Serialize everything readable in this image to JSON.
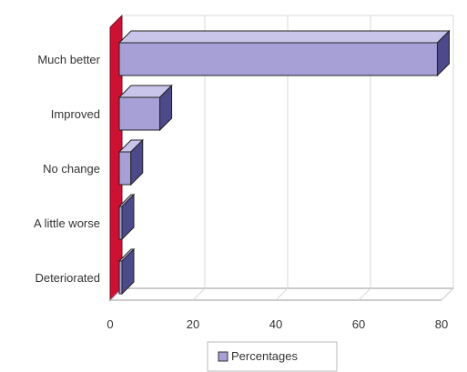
{
  "chart_data": {
    "type": "bar",
    "orientation": "horizontal",
    "style": "3d",
    "categories": [
      "Much better",
      "Improved",
      "No change",
      "A little worse",
      "Deteriorated"
    ],
    "series": [
      {
        "name": "Percentages",
        "values": [
          79,
          12,
          5,
          1.5,
          1.5
        ]
      }
    ],
    "xlim": [
      0,
      80
    ],
    "xticks": [
      0,
      20,
      40,
      60,
      80
    ],
    "title": "",
    "xlabel": "",
    "ylabel": "",
    "grid": true,
    "legend_position": "bottom",
    "colors": {
      "bar_front": "#a6a0d6",
      "bar_top": "#c9c5ea",
      "bar_side": "#4d4a8c",
      "bar_outline": "#222222",
      "side_wall": "#cc1133",
      "grid": "#d8d8d8"
    }
  },
  "legend": {
    "label": "Percentages"
  }
}
